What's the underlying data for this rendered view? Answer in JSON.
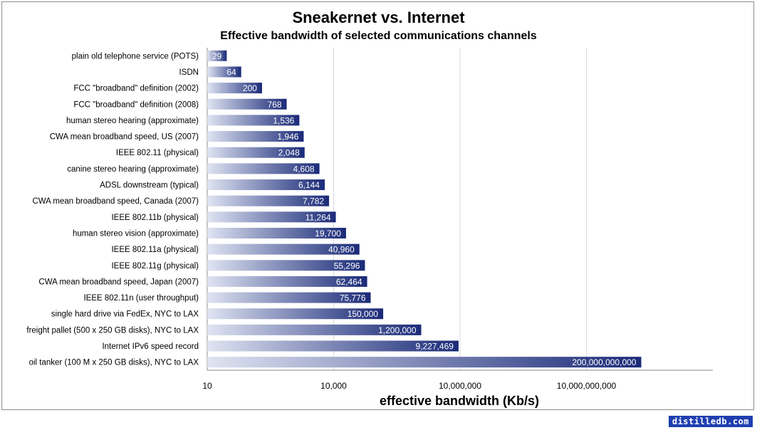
{
  "chart_data": {
    "type": "bar",
    "orientation": "horizontal",
    "title": "Sneakernet vs. Internet",
    "subtitle": "Effective bandwidth of selected communications channels",
    "xlabel": "effective bandwidth  (Kb/s)",
    "x_scale": "log10",
    "xlim": [
      10,
      10000000000000
    ],
    "x_ticks": [
      10,
      10000,
      10000000,
      10000000000
    ],
    "x_tick_labels": [
      "10",
      "10,000",
      "10,000,000",
      "10,000,000,000"
    ],
    "grid": "vertical major gridlines",
    "bar_gradient": [
      "#dfe4f2",
      "#1a2a78"
    ],
    "categories": [
      "plain old telephone service (POTS)",
      "ISDN",
      "FCC \"broadband\"  definition (2002)",
      "FCC \"broadband\"  definition (2008)",
      "human stereo hearing (approximate)",
      "CWA mean broadband speed, US (2007)",
      "IEEE 802.11 (physical)",
      "canine stereo hearing (approximate)",
      "ADSL downstream (typical)",
      "CWA mean broadband speed, Canada (2007)",
      "IEEE 802.11b (physical)",
      "human stereo vision (approximate)",
      "IEEE 802.11a (physical)",
      "IEEE 802.11g (physical)",
      "CWA mean broadband speed, Japan (2007)",
      "IEEE 802.11n (user throughput)",
      "single hard drive via FedEx, NYC to LAX",
      "freight pallet (500 x 250 GB disks), NYC to LAX",
      "Internet IPv6 speed record",
      "oil tanker (100 M x 250 GB disks), NYC to LAX"
    ],
    "values": [
      29,
      64,
      200,
      768,
      1536,
      1946,
      2048,
      4608,
      6144,
      7782,
      11264,
      19700,
      40960,
      55296,
      62464,
      75776,
      150000,
      1200000,
      9227469,
      200000000000
    ],
    "value_labels": [
      "29",
      "64",
      "200",
      "768",
      "1,536",
      "1,946",
      "2,048",
      "4,608",
      "6,144",
      "7,782",
      "11,264",
      "19,700",
      "40,960",
      "55,296",
      "62,464",
      "75,776",
      "150,000",
      "1,200,000",
      "9,227,469",
      "200,000,000,000"
    ]
  },
  "watermark": "distilledb.com"
}
